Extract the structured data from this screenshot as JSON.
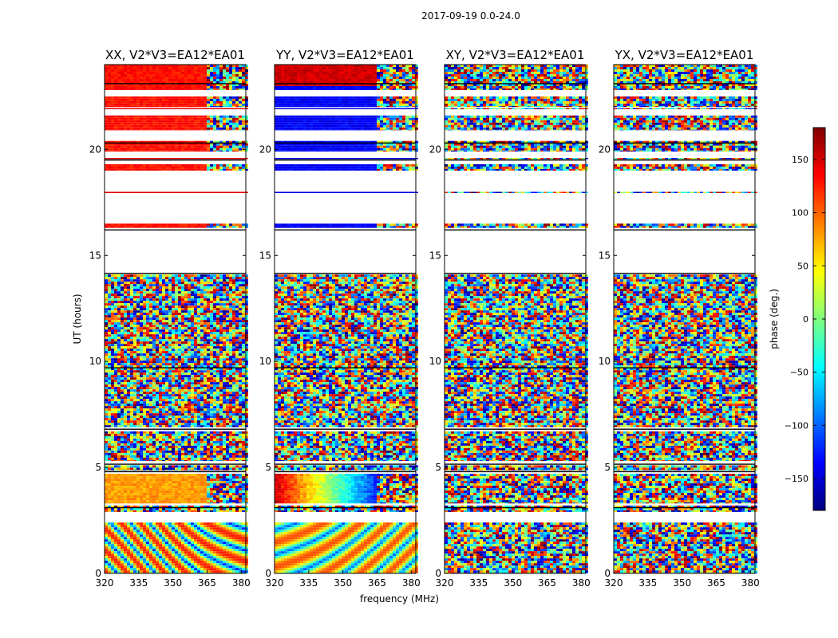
{
  "figure": {
    "suptitle": "2017-09-19 0.0-24.0"
  },
  "chart_data": {
    "type": "heatmap",
    "xlabel": "frequency (MHz)",
    "ylabel": "UT (hours)",
    "xlim": [
      320,
      382
    ],
    "ylim": [
      0,
      24
    ],
    "xticks": [
      "320",
      "335",
      "350",
      "365",
      "380"
    ],
    "yticks": [
      "0",
      "5",
      "10",
      "15",
      "20"
    ],
    "colorbar": {
      "label": "phase (deg.)",
      "range": [
        -180,
        180
      ],
      "ticks": [
        "150",
        "100",
        "50",
        "0",
        "−50",
        "−100",
        "−150"
      ],
      "colormap": "jet",
      "colors": [
        "#00007f",
        "#0000ff",
        "#007fff",
        "#00ffff",
        "#7fff7f",
        "#ffff00",
        "#ff7f00",
        "#ff0000",
        "#7f0000"
      ]
    },
    "panels": [
      {
        "title": "XX, V2*V3=EA12*EA01"
      },
      {
        "title": "YY, V2*V3=EA12*EA01"
      },
      {
        "title": "XY, V2*V3=EA12*EA01"
      },
      {
        "title": "YX, V2*V3=EA12*EA01"
      }
    ]
  }
}
